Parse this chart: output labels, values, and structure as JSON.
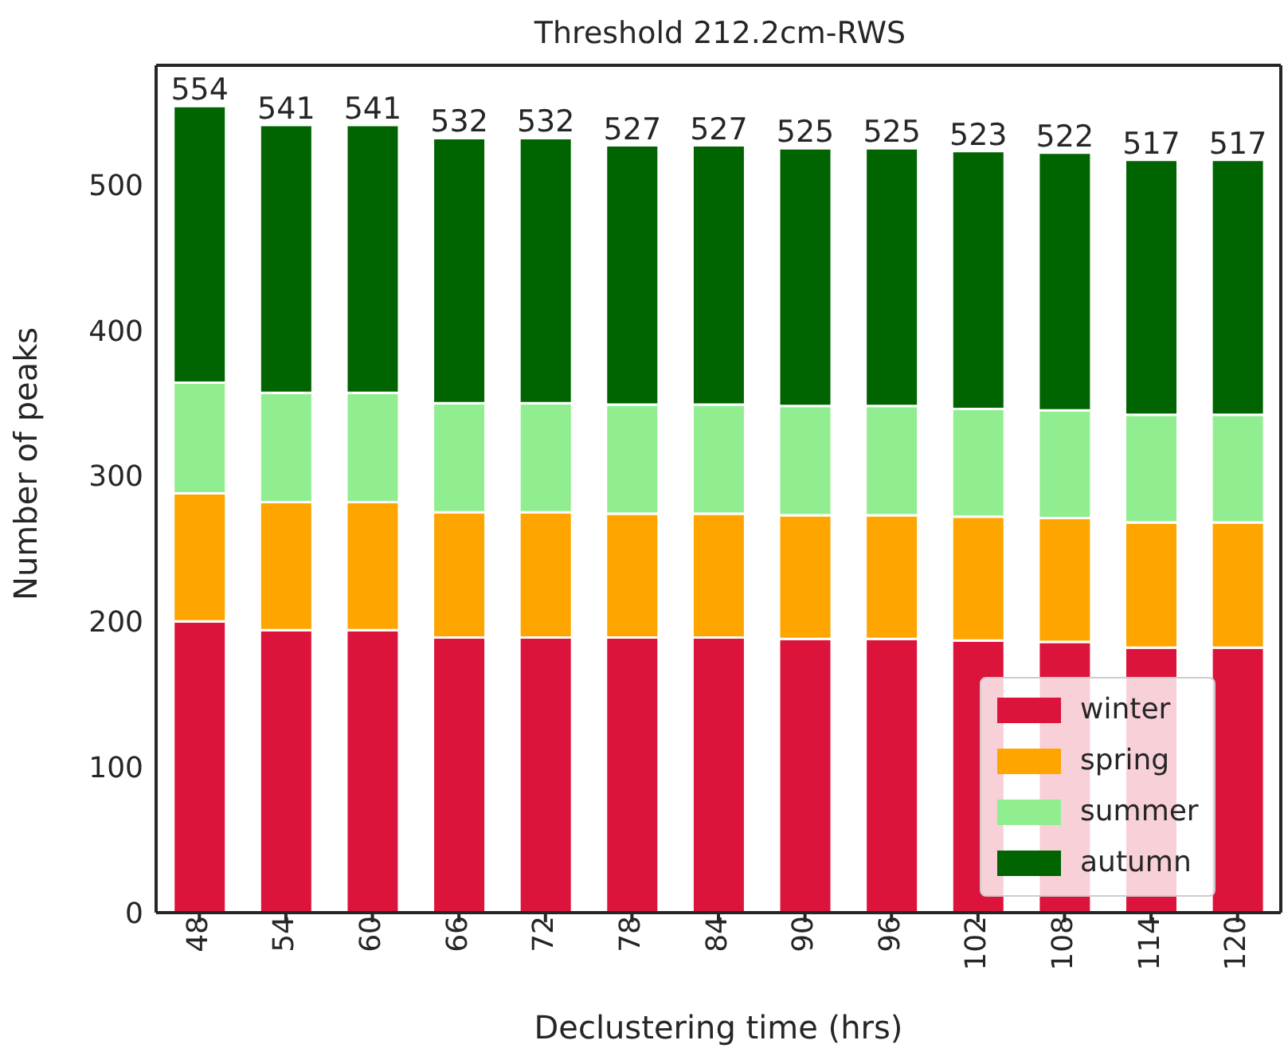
{
  "chart_data": {
    "type": "bar",
    "title": "Threshold 212.2cm-RWS",
    "xlabel": "Declustering time (hrs)",
    "ylabel": "Number of peaks",
    "categories": [
      "48",
      "54",
      "60",
      "66",
      "72",
      "78",
      "84",
      "90",
      "96",
      "102",
      "108",
      "114",
      "120"
    ],
    "stacked": true,
    "series": [
      {
        "name": "winter",
        "color": "#dc143c",
        "values": [
          200,
          194,
          194,
          189,
          189,
          189,
          189,
          188,
          188,
          187,
          186,
          182,
          182
        ]
      },
      {
        "name": "spring",
        "color": "#ffa500",
        "values": [
          88,
          88,
          88,
          86,
          86,
          85,
          85,
          85,
          85,
          85,
          85,
          86,
          86
        ]
      },
      {
        "name": "summer",
        "color": "#90ee90",
        "values": [
          76,
          75,
          75,
          75,
          75,
          75,
          75,
          75,
          75,
          74,
          74,
          74,
          74
        ]
      },
      {
        "name": "autumn",
        "color": "#006400",
        "values": [
          190,
          184,
          184,
          182,
          182,
          178,
          178,
          177,
          177,
          177,
          177,
          175,
          175
        ]
      }
    ],
    "totals": [
      "554",
      "541",
      "541",
      "532",
      "532",
      "527",
      "527",
      "525",
      "525",
      "523",
      "522",
      "517",
      "517"
    ],
    "ylim": [
      0,
      582
    ],
    "yticks": [
      0,
      100,
      200,
      300,
      400,
      500
    ],
    "grid": false,
    "legend": "bottom right"
  }
}
